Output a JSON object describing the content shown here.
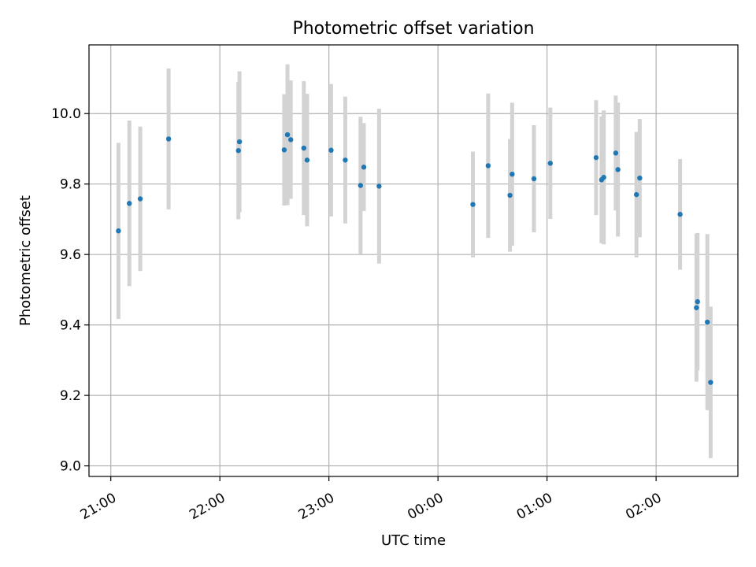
{
  "chart_data": {
    "type": "scatter",
    "title": "Photometric offset variation",
    "xlabel": "UTC time",
    "ylabel": "Photometric offset",
    "x_unit": "hours since 21:00 UTC",
    "xlim": [
      -0.2,
      5.75
    ],
    "ylim": [
      8.97,
      10.195
    ],
    "xticks": [
      {
        "value": 0,
        "label": "21:00"
      },
      {
        "value": 1,
        "label": "22:00"
      },
      {
        "value": 2,
        "label": "23:00"
      },
      {
        "value": 3,
        "label": "00:00"
      },
      {
        "value": 4,
        "label": "01:00"
      },
      {
        "value": 5,
        "label": "02:00"
      }
    ],
    "yticks": [
      {
        "value": 9.0,
        "label": "9.0"
      },
      {
        "value": 9.2,
        "label": "9.2"
      },
      {
        "value": 9.4,
        "label": "9.4"
      },
      {
        "value": 9.6,
        "label": "9.6"
      },
      {
        "value": 9.8,
        "label": "9.8"
      },
      {
        "value": 10.0,
        "label": "10.0"
      }
    ],
    "grid": true,
    "marker_color": "#1f77b4",
    "errorbar_color": "#d3d3d3",
    "points": [
      {
        "x": 0.07,
        "y": 9.667,
        "err": 0.25
      },
      {
        "x": 0.17,
        "y": 9.745,
        "err": 0.235
      },
      {
        "x": 0.27,
        "y": 9.758,
        "err": 0.205
      },
      {
        "x": 0.53,
        "y": 9.928,
        "err": 0.2
      },
      {
        "x": 1.17,
        "y": 9.895,
        "err": 0.195
      },
      {
        "x": 1.18,
        "y": 9.92,
        "err": 0.2
      },
      {
        "x": 1.59,
        "y": 9.897,
        "err": 0.158
      },
      {
        "x": 1.62,
        "y": 9.94,
        "err": 0.2
      },
      {
        "x": 1.65,
        "y": 9.926,
        "err": 0.168
      },
      {
        "x": 1.77,
        "y": 9.902,
        "err": 0.19
      },
      {
        "x": 1.8,
        "y": 9.868,
        "err": 0.188
      },
      {
        "x": 2.02,
        "y": 9.896,
        "err": 0.188
      },
      {
        "x": 2.15,
        "y": 9.868,
        "err": 0.18
      },
      {
        "x": 2.29,
        "y": 9.796,
        "err": 0.195
      },
      {
        "x": 2.32,
        "y": 9.848,
        "err": 0.125
      },
      {
        "x": 2.46,
        "y": 9.794,
        "err": 0.22
      },
      {
        "x": 3.32,
        "y": 9.742,
        "err": 0.15
      },
      {
        "x": 3.46,
        "y": 9.852,
        "err": 0.205
      },
      {
        "x": 3.66,
        "y": 9.768,
        "err": 0.16
      },
      {
        "x": 3.68,
        "y": 9.828,
        "err": 0.203
      },
      {
        "x": 3.88,
        "y": 9.815,
        "err": 0.152
      },
      {
        "x": 4.03,
        "y": 9.859,
        "err": 0.158
      },
      {
        "x": 4.45,
        "y": 9.875,
        "err": 0.163
      },
      {
        "x": 4.5,
        "y": 9.812,
        "err": 0.18
      },
      {
        "x": 4.52,
        "y": 9.819,
        "err": 0.19
      },
      {
        "x": 4.63,
        "y": 9.888,
        "err": 0.163
      },
      {
        "x": 4.65,
        "y": 9.841,
        "err": 0.19
      },
      {
        "x": 4.82,
        "y": 9.77,
        "err": 0.178
      },
      {
        "x": 4.85,
        "y": 9.817,
        "err": 0.168
      },
      {
        "x": 5.22,
        "y": 9.714,
        "err": 0.157
      },
      {
        "x": 5.37,
        "y": 9.449,
        "err": 0.21
      },
      {
        "x": 5.38,
        "y": 9.466,
        "err": 0.195
      },
      {
        "x": 5.47,
        "y": 9.408,
        "err": 0.25
      },
      {
        "x": 5.5,
        "y": 9.237,
        "err": 0.215
      }
    ]
  }
}
